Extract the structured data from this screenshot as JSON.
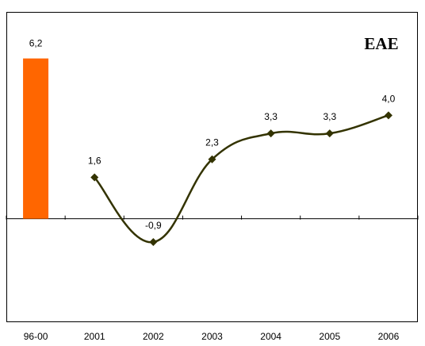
{
  "chart_data": {
    "type": "bar+line",
    "title": "EAE",
    "categories": [
      "96-00",
      "2001",
      "2002",
      "2003",
      "2004",
      "2005",
      "2006"
    ],
    "bar_series": {
      "categories": [
        "96-00"
      ],
      "values": [
        6.2
      ],
      "labels": [
        "6,2"
      ],
      "color": "#FF6600"
    },
    "line_series": {
      "categories": [
        "2001",
        "2002",
        "2003",
        "2004",
        "2005",
        "2006"
      ],
      "values": [
        1.6,
        -0.9,
        2.3,
        3.3,
        3.3,
        4.0
      ],
      "labels": [
        "1,6",
        "-0,9",
        "2,3",
        "3,3",
        "3,3",
        "4,0"
      ],
      "color": "#333300",
      "marker": "diamond",
      "smoothed": true
    },
    "ylim": [
      -4,
      8
    ],
    "grid": false,
    "legend": "none"
  }
}
